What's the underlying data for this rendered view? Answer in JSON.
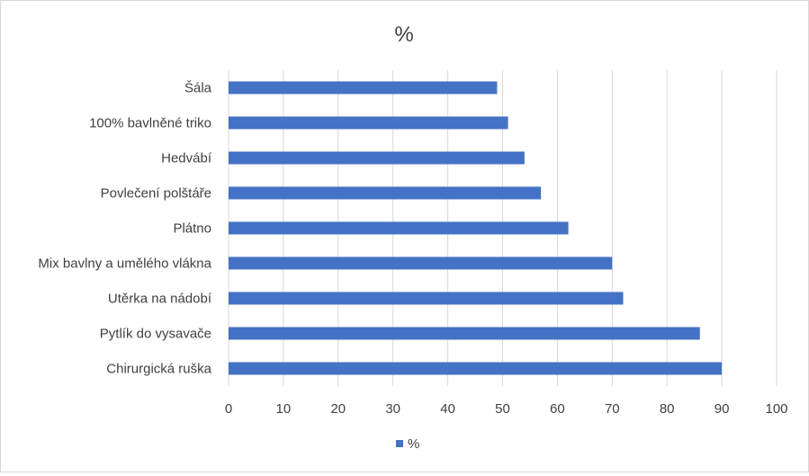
{
  "chart_data": {
    "type": "bar",
    "orientation": "horizontal",
    "title": "%",
    "categories": [
      "Šála",
      "100% bavlněné triko",
      "Hedvábí",
      "Povlečení polštáře",
      "Plátno",
      "Mix bavlny a umělého vlákna",
      "Utěrka na nádobí",
      "Pytlík do vysavače",
      "Chirurgická ruška"
    ],
    "series": [
      {
        "name": "%",
        "values": [
          49,
          51,
          54,
          57,
          62,
          70,
          72,
          86,
          90
        ],
        "color": "#4472c4"
      }
    ],
    "xlim": [
      0,
      100
    ],
    "xticks": [
      0,
      10,
      20,
      30,
      40,
      50,
      60,
      70,
      80,
      90,
      100
    ],
    "xlabel": "",
    "ylabel": "",
    "grid": "vertical",
    "legend_position": "bottom"
  }
}
